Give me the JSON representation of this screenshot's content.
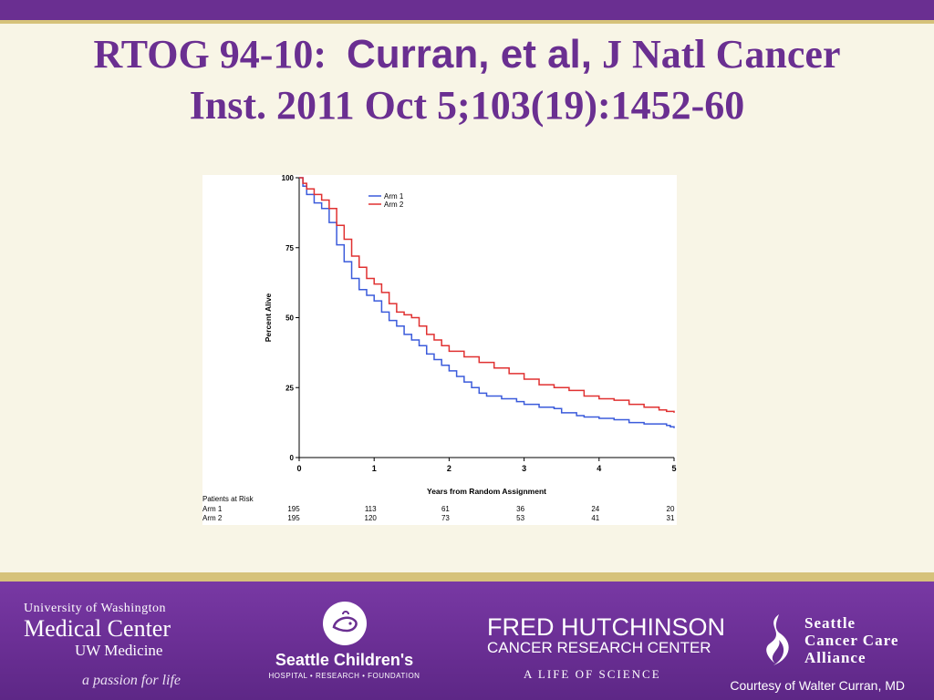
{
  "slide": {
    "title_line1_a": "RTOG 94-10:",
    "title_line1_b": "Curran, et al,",
    "title_line1_c": "J Natl Cancer",
    "title_line2": "Inst. 2011 Oct 5;103(19):1452-60"
  },
  "footer": {
    "uw_line1": "University of Washington",
    "uw_line2": "Medical Center",
    "uw_line3": "UW Medicine",
    "uw_line4": "a passion for life",
    "sc_name": "Seattle Children's",
    "sc_sub": "HOSPITAL • RESEARCH • FOUNDATION",
    "fh_line1": "FRED HUTCHINSON",
    "fh_line2": "CANCER RESEARCH CENTER",
    "fh_line3": "A LIFE OF SCIENCE",
    "scca_line1": "Seattle",
    "scca_line2": "Cancer Care",
    "scca_line3": "Alliance",
    "credit": "Courtesy of Walter Curran, MD"
  },
  "colors": {
    "purple": "#6a2f91",
    "gold": "#d6c27a",
    "arm1": "#3b5bdb",
    "arm2": "#e03131"
  },
  "chart_data": {
    "type": "line",
    "title": "",
    "xlabel": "Years from Random Assignment",
    "ylabel": "Percent Alive",
    "xlim": [
      0,
      5
    ],
    "ylim": [
      0,
      100
    ],
    "xticks": [
      0,
      1,
      2,
      3,
      4,
      5
    ],
    "yticks": [
      0,
      25,
      50,
      75,
      100
    ],
    "grid": false,
    "legend_position": "top-left",
    "series": [
      {
        "name": "Arm 1",
        "color": "#3b5bdb",
        "x": [
          0,
          0.05,
          0.1,
          0.2,
          0.3,
          0.4,
          0.5,
          0.6,
          0.7,
          0.8,
          0.9,
          1.0,
          1.1,
          1.2,
          1.3,
          1.4,
          1.5,
          1.6,
          1.7,
          1.8,
          1.9,
          2.0,
          2.1,
          2.2,
          2.3,
          2.4,
          2.5,
          2.7,
          2.9,
          3.0,
          3.2,
          3.4,
          3.5,
          3.7,
          3.8,
          4.0,
          4.2,
          4.4,
          4.6,
          4.8,
          4.9,
          4.95,
          5.0
        ],
        "y": [
          100,
          97,
          94,
          91,
          89,
          84,
          76,
          70,
          64,
          60,
          58,
          56,
          52,
          49,
          47,
          44,
          42,
          40,
          37,
          35,
          33,
          31,
          29,
          27,
          25,
          23,
          22,
          21,
          20,
          19,
          18,
          17.5,
          16,
          15,
          14.5,
          14,
          13.5,
          12.5,
          12,
          12,
          11.5,
          11,
          10.5
        ]
      },
      {
        "name": "Arm 2",
        "color": "#e03131",
        "x": [
          0,
          0.05,
          0.1,
          0.2,
          0.3,
          0.4,
          0.5,
          0.6,
          0.7,
          0.8,
          0.9,
          1.0,
          1.1,
          1.2,
          1.3,
          1.4,
          1.5,
          1.6,
          1.7,
          1.8,
          1.9,
          2.0,
          2.2,
          2.4,
          2.6,
          2.8,
          3.0,
          3.2,
          3.4,
          3.6,
          3.8,
          4.0,
          4.2,
          4.4,
          4.6,
          4.8,
          4.9,
          5.0
        ],
        "y": [
          100,
          98,
          96,
          94,
          92,
          89,
          83,
          78,
          72,
          68,
          64,
          62,
          59,
          55,
          52,
          51,
          50,
          47,
          44,
          42,
          40,
          38,
          36,
          34,
          32,
          30,
          28,
          26,
          25,
          24,
          22,
          21,
          20.5,
          19,
          18,
          17,
          16.5,
          16
        ]
      }
    ],
    "risk_table": {
      "label": "Patients at Risk",
      "rows": [
        {
          "name": "Arm 1",
          "values": [
            195,
            113,
            61,
            36,
            24,
            20
          ]
        },
        {
          "name": "Arm 2",
          "values": [
            195,
            120,
            73,
            53,
            41,
            31
          ]
        }
      ]
    }
  }
}
